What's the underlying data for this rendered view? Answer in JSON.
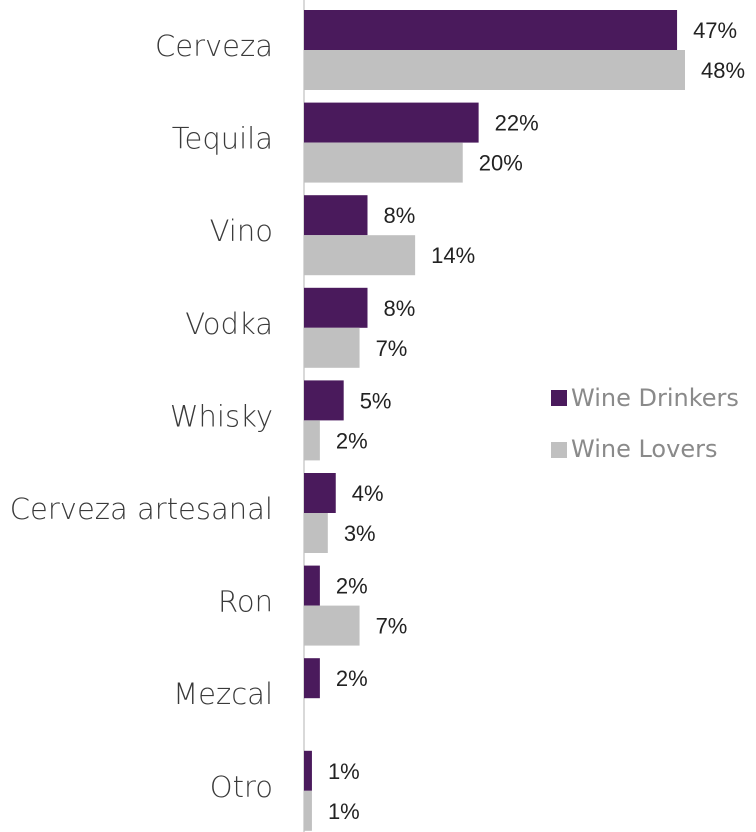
{
  "chart_data": {
    "type": "bar",
    "orientation": "horizontal",
    "categories": [
      "Cerveza",
      "Tequila",
      "Vino",
      "Vodka",
      "Whisky",
      "Cerveza artesanal",
      "Ron",
      "Mezcal",
      "Otro"
    ],
    "series": [
      {
        "name": "Wine Drinkers",
        "color": "#4a1a5c",
        "values": [
          47,
          22,
          8,
          8,
          5,
          4,
          2,
          2,
          1
        ],
        "labels": [
          "47%",
          "22%",
          "8%",
          "8%",
          "5%",
          "4%",
          "2%",
          "2%",
          "1%"
        ]
      },
      {
        "name": "Wine Lovers",
        "color": "#c0c0c0",
        "values": [
          48,
          20,
          14,
          7,
          2,
          3,
          7,
          0,
          1
        ],
        "labels": [
          "48%",
          "20%",
          "14%",
          "7%",
          "2%",
          "3%",
          "7%",
          "",
          "1%"
        ]
      }
    ],
    "title": "",
    "xlabel": "",
    "ylabel": "",
    "xlim": [
      0,
      48
    ],
    "grid": false,
    "legend_position": "right-middle"
  }
}
